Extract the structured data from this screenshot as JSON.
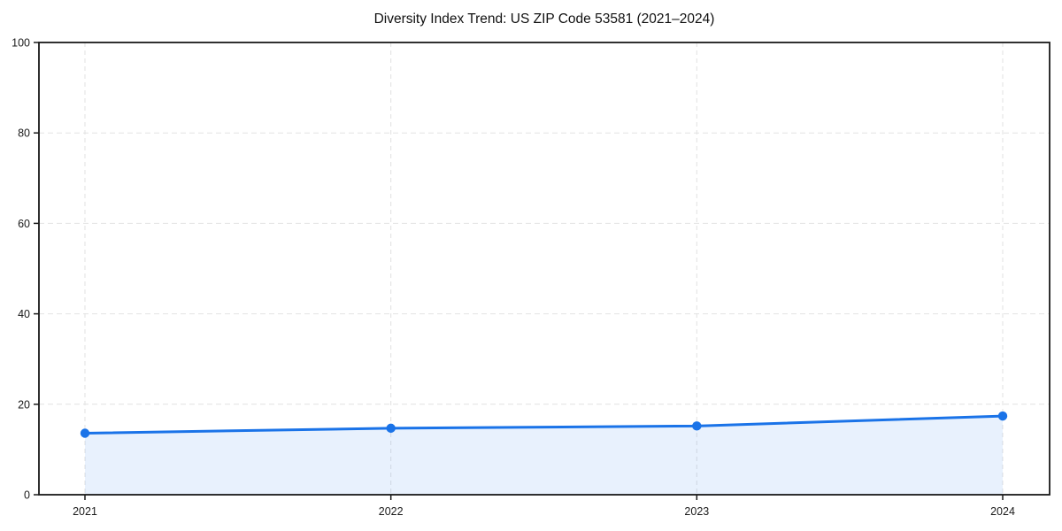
{
  "figure": {
    "background": "#ffffff"
  },
  "chart_data": {
    "type": "line",
    "title": "Diversity Index Trend: US ZIP Code 53581 (2021–2024)",
    "categories": [
      "2021",
      "2022",
      "2023",
      "2024"
    ],
    "series": [
      {
        "name": "Diversity Index",
        "values": [
          13.6,
          14.7,
          15.2,
          17.4
        ]
      }
    ],
    "xlabel": "",
    "ylabel": "",
    "ylim": [
      0,
      100
    ],
    "yticks": [
      0,
      20,
      40,
      60,
      80,
      100
    ],
    "grid": "on",
    "grid_style": "dashed",
    "legend_position": "none",
    "area_fill": true,
    "marker": "circle",
    "colors": {
      "line": "#1a73e8",
      "marker": "#1a73e8",
      "area": "#1a73e8",
      "area_opacity": "0.10",
      "grid": "#e2e2e2",
      "spine": "#1a1a1a",
      "tick_text": "#1a1a1a",
      "title_text": "#111111"
    }
  }
}
